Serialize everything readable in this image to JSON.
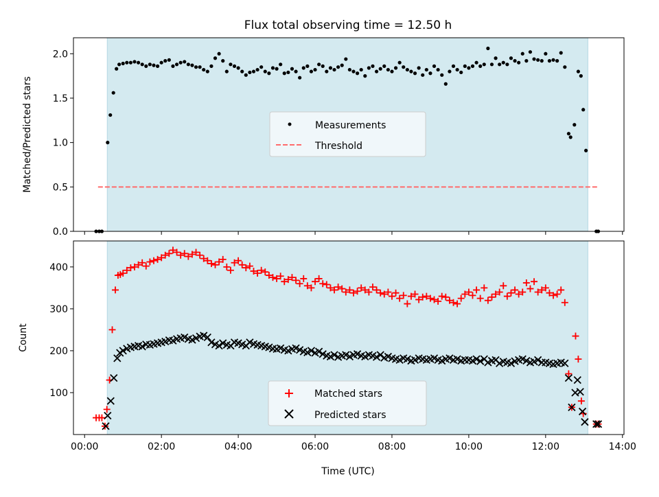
{
  "chart_data": [
    {
      "type": "scatter",
      "title": "Flux total observing time = 12.50 h",
      "xlabel": "",
      "ylabel": "Matched/Predicted stars",
      "xlim_hours": [
        -0.29,
        14.04
      ],
      "ylim": [
        0,
        2.18
      ],
      "yticks": [
        0.0,
        0.5,
        1.0,
        1.5,
        2.0
      ],
      "ytick_labels": [
        "0.0",
        "0.5",
        "1.0",
        "1.5",
        "2.0"
      ],
      "shaded_span_hours": [
        0.59,
        13.1
      ],
      "shade_color": "#d4eaf0",
      "threshold": {
        "name": "Threshold",
        "value": 0.5,
        "x_range_hours": [
          0.35,
          13.35
        ],
        "color": "#ff6b6b",
        "style": "dashed"
      },
      "legend": {
        "placement": "center",
        "entries": [
          "Measurements",
          "Threshold"
        ]
      },
      "series": [
        {
          "name": "Measurements",
          "color": "#000000",
          "marker": "dot",
          "head": {
            "x": [
              0.3,
              0.38,
              0.45,
              0.6,
              0.67,
              0.75,
              0.83,
              0.9
            ],
            "y": [
              0,
              0,
              0,
              1.0,
              1.31,
              1.56,
              1.83,
              1.88
            ]
          },
          "regular": {
            "x_start": 1.0,
            "x_step": 0.1,
            "y": [
              1.89,
              1.9,
              1.9,
              1.91,
              1.9,
              1.88,
              1.86,
              1.88,
              1.87,
              1.86,
              1.9,
              1.92,
              1.93,
              1.86,
              1.88,
              1.9,
              1.91,
              1.88,
              1.87,
              1.85,
              1.85,
              1.82,
              1.8,
              1.86,
              1.95,
              2.0,
              1.92,
              1.8,
              1.88,
              1.86,
              1.84,
              1.8,
              1.76,
              1.79,
              1.8,
              1.82,
              1.85,
              1.8,
              1.78,
              1.84,
              1.83,
              1.88,
              1.78,
              1.79,
              1.83,
              1.8,
              1.73,
              1.84,
              1.86,
              1.8,
              1.82,
              1.88,
              1.86,
              1.8,
              1.84,
              1.82,
              1.85,
              1.87,
              1.94,
              1.82,
              1.8,
              1.78,
              1.82,
              1.75,
              1.84,
              1.86,
              1.8,
              1.83,
              1.86,
              1.82,
              1.8,
              1.84,
              1.9,
              1.85,
              1.82,
              1.8,
              1.78,
              1.84,
              1.76,
              1.82,
              1.78,
              1.86,
              1.82,
              1.76,
              1.66,
              1.8,
              1.86,
              1.82,
              1.79,
              1.86,
              1.84,
              1.86,
              1.9,
              1.86,
              1.88,
              2.06,
              1.88,
              1.95,
              1.88,
              1.9,
              1.88,
              1.95,
              1.92,
              1.9,
              2.0,
              1.92,
              2.02,
              1.94,
              1.93,
              1.92,
              2.0,
              1.92,
              1.93,
              1.92,
              2.01,
              1.85
            ]
          },
          "tail": {
            "x": [
              12.6,
              12.65,
              12.75,
              12.85,
              12.92,
              12.98,
              13.05,
              13.32,
              13.37
            ],
            "y": [
              1.1,
              1.06,
              1.2,
              1.8,
              1.75,
              1.37,
              0.91,
              0,
              0
            ]
          }
        }
      ]
    },
    {
      "type": "scatter",
      "title": "",
      "xlabel": "Time (UTC)",
      "ylabel": "Count",
      "xlim_hours": [
        -0.29,
        14.04
      ],
      "ylim": [
        0,
        462
      ],
      "yticks": [
        100,
        200,
        300,
        400
      ],
      "ytick_labels": [
        "100",
        "200",
        "300",
        "400"
      ],
      "xticks_hours": [
        0,
        2,
        4,
        6,
        8,
        10,
        12,
        14
      ],
      "xtick_labels": [
        "00:00",
        "02:00",
        "04:00",
        "06:00",
        "08:00",
        "10:00",
        "12:00",
        "14:00"
      ],
      "shaded_span_hours": [
        0.59,
        13.1
      ],
      "shade_color": "#d4eaf0",
      "legend": {
        "placement": "bottom-center",
        "entries": [
          "Matched stars",
          "Predicted stars"
        ]
      },
      "series": [
        {
          "name": "Matched stars",
          "color": "#ff0000",
          "marker": "plus",
          "head": {
            "x": [
              0.3,
              0.38,
              0.45,
              0.53,
              0.58,
              0.65,
              0.72,
              0.8,
              0.87,
              0.93
            ],
            "y": [
              40,
              40,
              40,
              20,
              60,
              130,
              250,
              345,
              380,
              382
            ]
          },
          "regular": {
            "x_start": 1.0,
            "x_step": 0.1,
            "y": [
              385,
              392,
              398,
              400,
              405,
              410,
              402,
              412,
              415,
              418,
              422,
              428,
              432,
              440,
              435,
              428,
              432,
              425,
              430,
              435,
              428,
              420,
              415,
              408,
              405,
              412,
              418,
              400,
              392,
              410,
              415,
              405,
              398,
              402,
              390,
              385,
              392,
              388,
              380,
              375,
              372,
              378,
              365,
              370,
              375,
              368,
              360,
              372,
              355,
              350,
              365,
              372,
              360,
              358,
              350,
              345,
              352,
              348,
              340,
              345,
              338,
              342,
              350,
              345,
              340,
              352,
              345,
              338,
              335,
              340,
              330,
              338,
              325,
              332,
              312,
              330,
              335,
              322,
              328,
              330,
              325,
              322,
              318,
              330,
              328,
              320,
              315,
              312,
              325,
              335,
              340,
              332,
              345,
              325,
              350,
              320,
              328,
              335,
              340,
              355,
              330,
              338,
              345,
              335,
              340,
              362,
              348,
              365,
              340,
              345,
              350,
              338,
              332,
              335,
              345,
              315
            ]
          },
          "tail": {
            "x": [
              12.6,
              12.68,
              12.78,
              12.85,
              12.93,
              12.98,
              13.32,
              13.37
            ],
            "y": [
              145,
              65,
              235,
              180,
              80,
              50,
              25,
              25
            ]
          }
        },
        {
          "name": "Predicted stars",
          "color": "#000000",
          "marker": "x",
          "head": {
            "x": [
              0.55,
              0.6,
              0.68,
              0.76,
              0.85,
              0.92
            ],
            "y": [
              20,
              45,
              80,
              135,
              182,
              195
            ]
          },
          "regular": {
            "x_start": 1.0,
            "x_step": 0.1,
            "y": [
              200,
              205,
              208,
              210,
              212,
              210,
              215,
              214,
              216,
              218,
              220,
              222,
              225,
              224,
              228,
              230,
              232,
              228,
              226,
              230,
              234,
              236,
              232,
              220,
              215,
              212,
              218,
              214,
              212,
              220,
              218,
              215,
              212,
              220,
              216,
              214,
              212,
              210,
              208,
              205,
              204,
              206,
              202,
              200,
              204,
              206,
              202,
              198,
              196,
              200,
              195,
              198,
              192,
              188,
              186,
              190,
              185,
              188,
              190,
              186,
              190,
              192,
              188,
              186,
              190,
              188,
              185,
              190,
              183,
              186,
              182,
              180,
              178,
              182,
              180,
              176,
              178,
              182,
              180,
              178,
              180,
              182,
              178,
              176,
              180,
              182,
              178,
              180,
              176,
              178,
              178,
              176,
              180,
              175,
              180,
              172,
              176,
              178,
              170,
              174,
              172,
              170,
              175,
              178,
              180,
              176,
              172,
              174,
              178,
              172,
              172,
              170,
              168,
              170,
              172,
              170
            ]
          },
          "tail": {
            "x": [
              12.6,
              12.68,
              12.77,
              12.83,
              12.9,
              12.96,
              13.02,
              13.32,
              13.37
            ],
            "y": [
              135,
              65,
              100,
              130,
              102,
              55,
              30,
              25,
              25
            ]
          }
        }
      ]
    }
  ]
}
